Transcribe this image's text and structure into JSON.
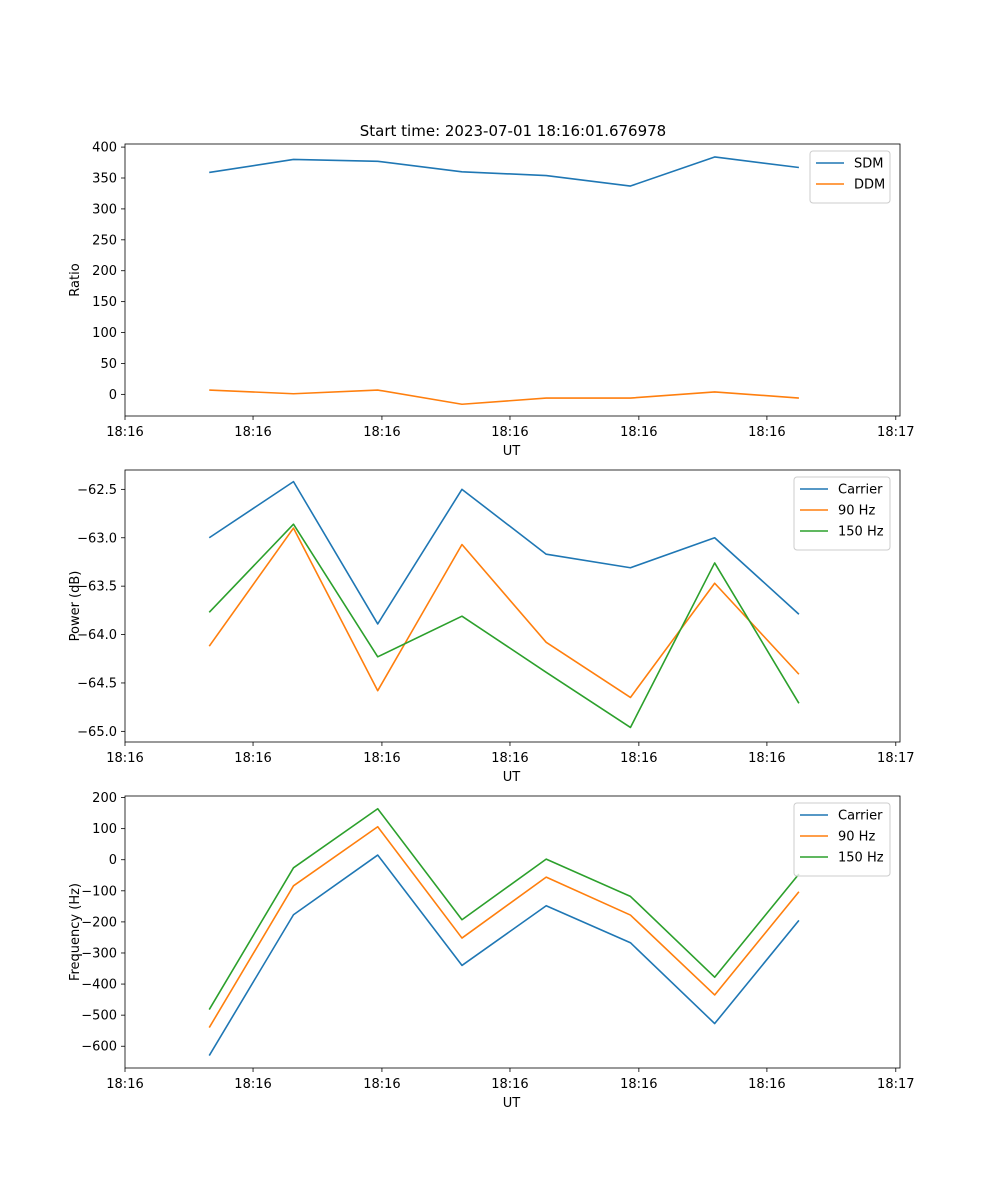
{
  "figure_title": "Start time: 2023-07-01 18:16:01.676978",
  "colors": {
    "blue": "#1f77b4",
    "orange": "#ff7f0e",
    "green": "#2ca02c"
  },
  "chart_data": [
    {
      "type": "line",
      "title": "Start time: 2023-07-01 18:16:01.676978",
      "xlabel": "UT",
      "ylabel": "Ratio",
      "x": [
        1,
        2,
        3,
        4,
        5,
        6,
        7,
        8
      ],
      "xlim": [
        0,
        9.2
      ],
      "ylim": [
        -35,
        405
      ],
      "yticks": [
        0,
        50,
        100,
        150,
        200,
        250,
        300,
        350,
        400
      ],
      "yticklabels": [
        "0",
        "50",
        "100",
        "150",
        "200",
        "250",
        "300",
        "350",
        "400"
      ],
      "xtick_positions": [
        0,
        1.52,
        3.05,
        4.57,
        6.1,
        7.62,
        9.15
      ],
      "xticklabels": [
        "18:16",
        "18:16",
        "18:16",
        "18:16",
        "18:16",
        "18:16",
        "18:17"
      ],
      "legend_position": "top-right",
      "series": [
        {
          "name": "SDM",
          "color": "#1f77b4",
          "values": [
            359,
            380,
            377,
            360,
            354,
            337,
            384,
            367
          ]
        },
        {
          "name": "DDM",
          "color": "#ff7f0e",
          "values": [
            7,
            1,
            7,
            -16,
            -6,
            -6,
            4,
            -6
          ]
        }
      ]
    },
    {
      "type": "line",
      "title": "",
      "xlabel": "UT",
      "ylabel": "Power (dB)",
      "x": [
        1,
        2,
        3,
        4,
        5,
        6,
        7,
        8
      ],
      "xlim": [
        0,
        9.2
      ],
      "ylim": [
        -65.11,
        -62.3
      ],
      "yticks": [
        -65.0,
        -64.5,
        -64.0,
        -63.5,
        -63.0,
        -62.5
      ],
      "yticklabels": [
        "−65.0",
        "−64.5",
        "−64.0",
        "−63.5",
        "−63.0",
        "−62.5"
      ],
      "xtick_positions": [
        0,
        1.52,
        3.05,
        4.57,
        6.1,
        7.62,
        9.15
      ],
      "xticklabels": [
        "18:16",
        "18:16",
        "18:16",
        "18:16",
        "18:16",
        "18:16",
        "18:17"
      ],
      "legend_position": "top-right",
      "series": [
        {
          "name": "Carrier",
          "color": "#1f77b4",
          "values": [
            -63.0,
            -62.42,
            -63.89,
            -62.5,
            -63.17,
            -63.31,
            -63.0,
            -63.79
          ]
        },
        {
          "name": "90 Hz",
          "color": "#ff7f0e",
          "values": [
            -64.12,
            -62.9,
            -64.58,
            -63.07,
            -64.08,
            -64.65,
            -63.47,
            -64.41
          ]
        },
        {
          "name": "150 Hz",
          "color": "#2ca02c",
          "values": [
            -63.77,
            -62.86,
            -64.23,
            -63.81,
            -64.39,
            -64.96,
            -63.26,
            -64.71
          ]
        }
      ]
    },
    {
      "type": "line",
      "title": "",
      "xlabel": "UT",
      "ylabel": "Frequency (Hz)",
      "x": [
        1,
        2,
        3,
        4,
        5,
        6,
        7,
        8
      ],
      "xlim": [
        0,
        9.2
      ],
      "ylim": [
        -670,
        205
      ],
      "yticks": [
        -600,
        -500,
        -400,
        -300,
        -200,
        -100,
        0,
        100,
        200
      ],
      "yticklabels": [
        "−600",
        "−500",
        "−400",
        "−300",
        "−200",
        "−100",
        "0",
        "100",
        "200"
      ],
      "xtick_positions": [
        0,
        1.52,
        3.05,
        4.57,
        6.1,
        7.62,
        9.15
      ],
      "xticklabels": [
        "18:16",
        "18:16",
        "18:16",
        "18:16",
        "18:16",
        "18:16",
        "18:17"
      ],
      "legend_position": "top-right",
      "series": [
        {
          "name": "Carrier",
          "color": "#1f77b4",
          "values": [
            -630,
            -177,
            15,
            -340,
            -148,
            -267,
            -527,
            -195
          ]
        },
        {
          "name": "90 Hz",
          "color": "#ff7f0e",
          "values": [
            -540,
            -84,
            106,
            -252,
            -56,
            -178,
            -435,
            -103
          ]
        },
        {
          "name": "150 Hz",
          "color": "#2ca02c",
          "values": [
            -482,
            -26,
            164,
            -193,
            2,
            -118,
            -378,
            -46
          ]
        }
      ]
    }
  ]
}
